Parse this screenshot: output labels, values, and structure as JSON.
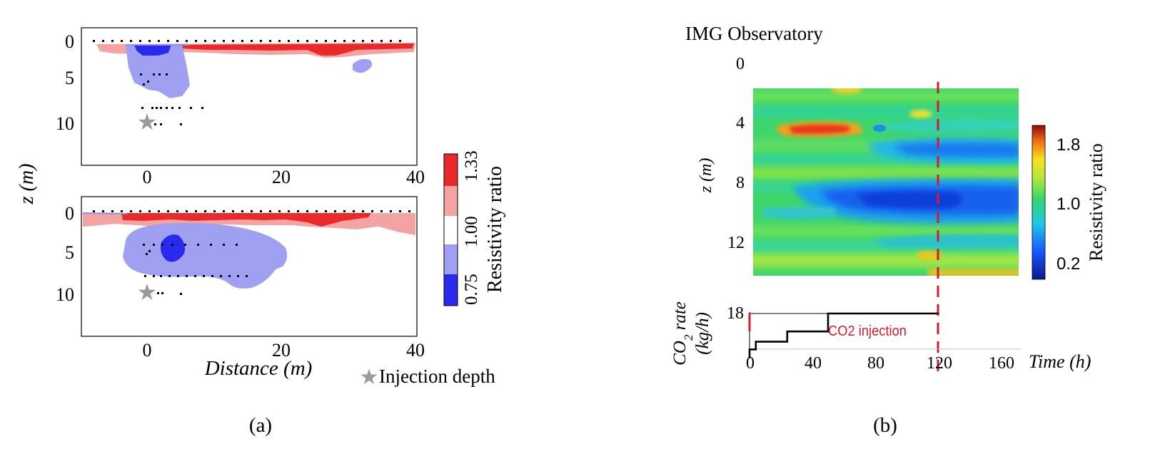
{
  "captions": {
    "left": "(a)",
    "right": "(b)"
  },
  "chart_data": [
    {
      "type": "heatmap",
      "id": "panel-a",
      "subtitle": "",
      "xlabel": "Distance (m)",
      "ylabel": "z (m)",
      "x_ticks": [
        "0",
        "20",
        "40"
      ],
      "y_ticks": [
        "0",
        "5",
        "10"
      ],
      "xlim": [
        -10,
        40
      ],
      "ylim": [
        15,
        -2
      ],
      "colorbar": {
        "label": "Resistivity  ratio",
        "ticks": [
          "0.75",
          "1.00",
          "1.33"
        ],
        "colors": [
          "#2a2aee",
          "#9fa0f2",
          "#ffffff",
          "#f4a3a3",
          "#ea2a2a"
        ]
      },
      "legend": {
        "marker": "★",
        "label": "Injection depth"
      },
      "injection": {
        "x": 0,
        "z": 10
      },
      "subpanels": [
        "top",
        "bottom"
      ]
    },
    {
      "type": "heatmap",
      "id": "panel-b",
      "title": "IMG Observatory",
      "ylabel": "z (m)",
      "xlabel": "Time (h)",
      "x_ticks": [
        "0",
        "40",
        "80",
        "120",
        "160"
      ],
      "y_ticks": [
        "0",
        "4",
        "8",
        "12"
      ],
      "xlim": [
        0,
        170
      ],
      "ylim": [
        14,
        0
      ],
      "injection_end_time": 120,
      "colorbar": {
        "label": "Resistivity  ratio",
        "ticks": [
          "1.8",
          "1.0",
          "0.2"
        ],
        "range": [
          0,
          2
        ]
      },
      "rate_chart": {
        "ylabel": "CO2 rate",
        "ylabel_units": "(kg/h)",
        "y_tick": "18",
        "annotation": "CO2 injection",
        "series_time": [
          0,
          0,
          4,
          4,
          24,
          24,
          50,
          50,
          120
        ],
        "series_rate": [
          14.5,
          15.2,
          15.2,
          15.8,
          15.8,
          16.6,
          16.6,
          18,
          18
        ]
      }
    }
  ]
}
